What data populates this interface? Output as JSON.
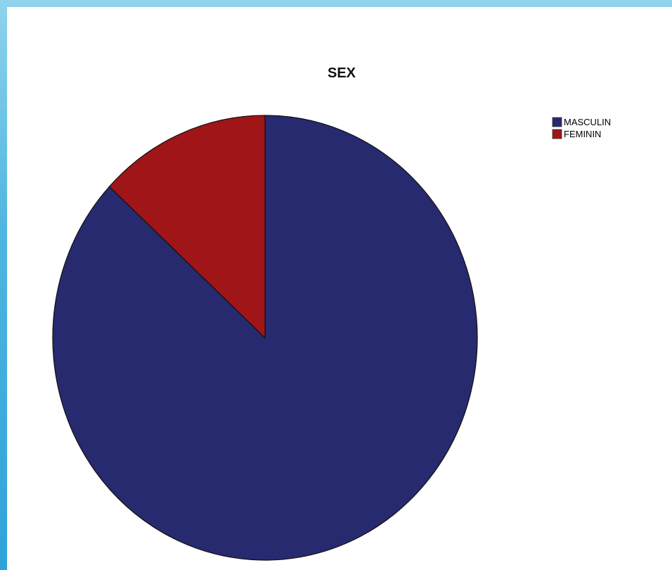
{
  "chart_data": {
    "type": "pie",
    "title": "SEX",
    "categories": [
      "MASCULIN",
      "FEMININ"
    ],
    "values": [
      86.9,
      13.1
    ],
    "colors": [
      "#272a6e",
      "#9f1518"
    ],
    "start_angle_deg": 0,
    "direction": "clockwise",
    "legend_position": "top-right"
  }
}
